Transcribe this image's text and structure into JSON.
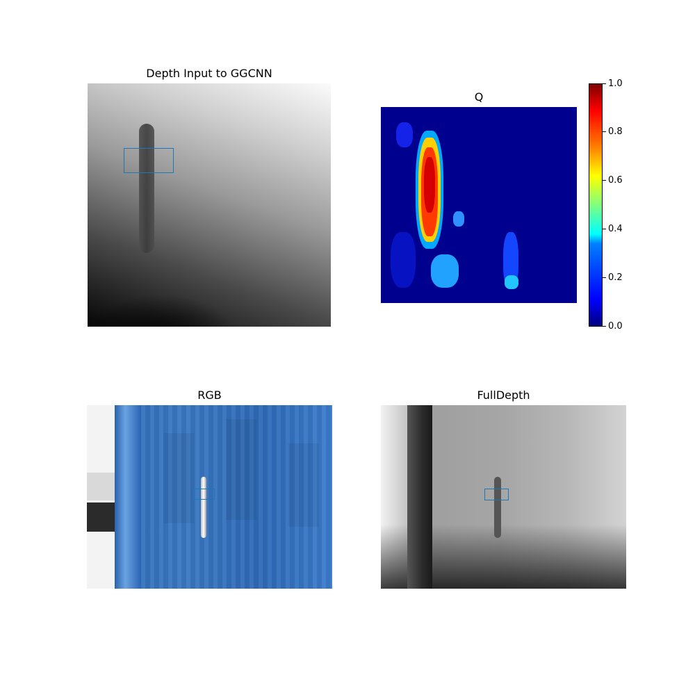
{
  "panels": {
    "depth_input": {
      "title": "Depth Input to GGCNN"
    },
    "q": {
      "title": "Q"
    },
    "rgb": {
      "title": "RGB"
    },
    "full_depth": {
      "title": "FullDepth"
    }
  },
  "colorbar": {
    "ticks": [
      "0.0",
      "0.2",
      "0.4",
      "0.6",
      "0.8",
      "1.0"
    ],
    "colormap": "jet",
    "range": [
      0.0,
      1.0
    ]
  },
  "colors": {
    "grasp_box": "#1f77b4"
  }
}
